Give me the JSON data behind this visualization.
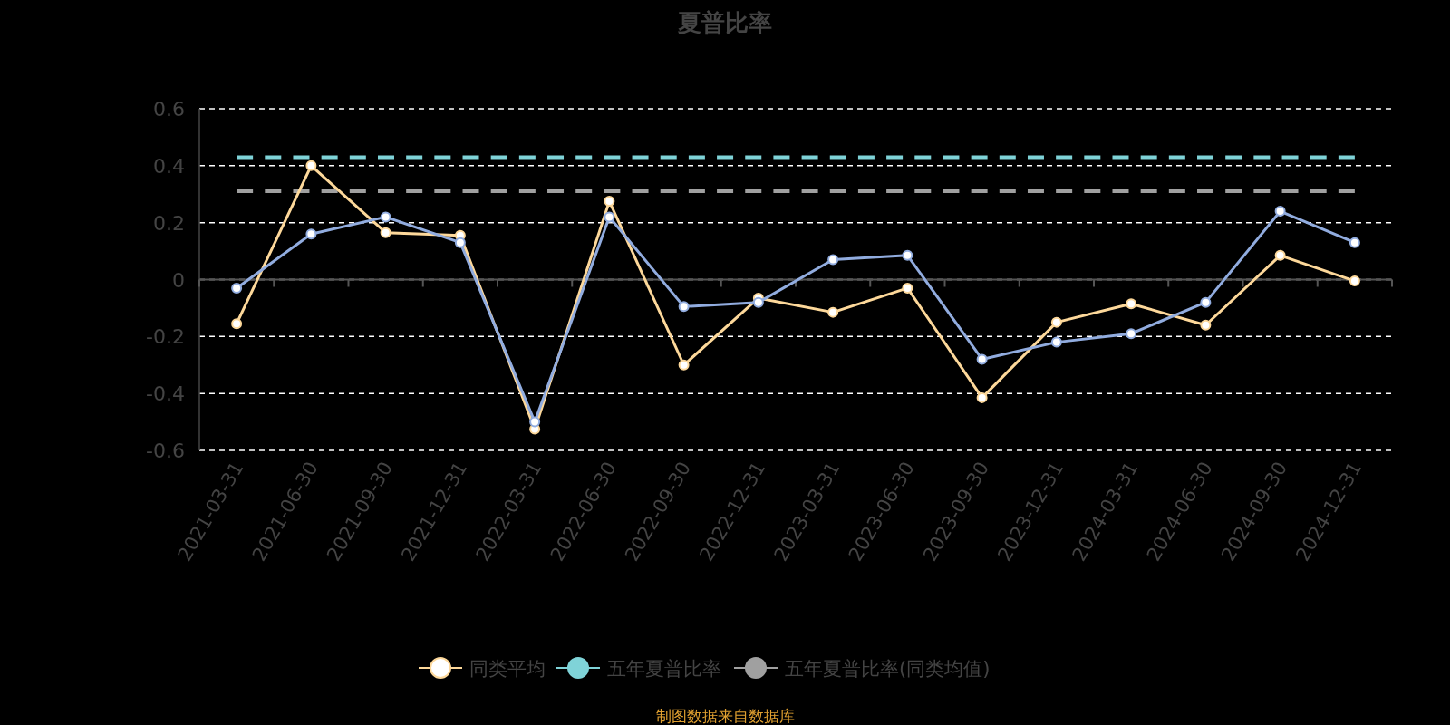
{
  "chart_data": {
    "type": "line",
    "title": "夏普比率",
    "categories": [
      "2021-03-31",
      "2021-06-30",
      "2021-09-30",
      "2021-12-31",
      "2022-03-31",
      "2022-06-30",
      "2022-09-30",
      "2022-12-31",
      "2023-03-31",
      "2023-06-30",
      "2023-09-30",
      "2023-12-31",
      "2024-03-31",
      "2024-06-30",
      "2024-09-30",
      "2024-12-31"
    ],
    "series": [
      {
        "color": "#91acdf",
        "marker": "circle",
        "values": [
          -0.03,
          0.16,
          0.22,
          0.13,
          -0.5,
          0.22,
          -0.095,
          -0.08,
          0.07,
          0.085,
          -0.28,
          -0.22,
          -0.19,
          -0.08,
          0.24,
          0.13
        ]
      },
      {
        "name": "同类平均",
        "color": "#fdd89a",
        "marker": "circle",
        "values": [
          -0.155,
          0.4,
          0.165,
          0.155,
          -0.525,
          0.275,
          -0.3,
          -0.065,
          -0.115,
          -0.03,
          -0.415,
          -0.15,
          -0.085,
          -0.16,
          0.085,
          -0.005
        ]
      },
      {
        "name": "五年夏普比率",
        "color": "#7fd3d8",
        "marker": "none",
        "line_style": "dashed",
        "values": [
          0.43,
          0.43,
          0.43,
          0.43,
          0.43,
          0.43,
          0.43,
          0.43,
          0.43,
          0.43,
          0.43,
          0.43,
          0.43,
          0.43,
          0.43,
          0.43
        ]
      },
      {
        "name": "五年夏普比率(同类均值)",
        "color": "#a0a0a0",
        "marker": "none",
        "line_style": "dashed",
        "values": [
          0.31,
          0.31,
          0.31,
          0.31,
          0.31,
          0.31,
          0.31,
          0.31,
          0.31,
          0.31,
          0.31,
          0.31,
          0.31,
          0.31,
          0.31,
          0.31
        ]
      }
    ],
    "ylim": [
      -0.6,
      0.6
    ],
    "yticks": [
      -0.6,
      -0.4,
      -0.2,
      0,
      0.2,
      0.4,
      0.6
    ],
    "grid": "y",
    "legend": "bottom",
    "annotations": [
      "制图数据来自数据库"
    ]
  }
}
